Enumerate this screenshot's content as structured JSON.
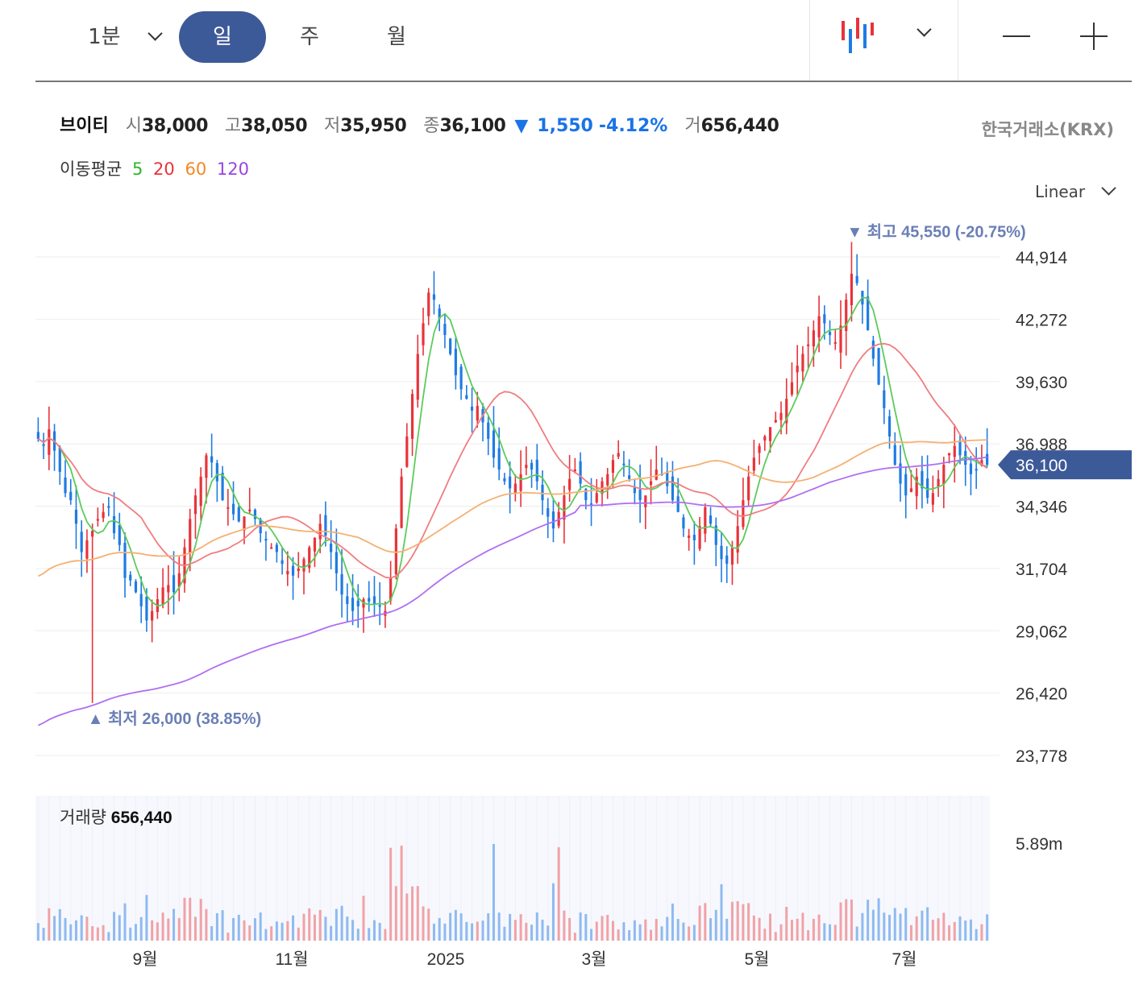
{
  "toolbar": {
    "interval": "1분",
    "periods": [
      "일",
      "주",
      "월"
    ],
    "active_period": "일"
  },
  "stock": {
    "name": "브이티",
    "open_label": "시",
    "open": "38,000",
    "high_label": "고",
    "high": "38,050",
    "low_label": "저",
    "low": "35,950",
    "close_label": "종",
    "close": "36,100",
    "change_arrow": "▼",
    "change": "1,550",
    "change_pct": "-4.12%",
    "volume_label": "거",
    "volume": "656,440",
    "exchange": "한국거래소(KRX)"
  },
  "ma_legend": {
    "title": "이동평균",
    "items": [
      {
        "period": "5",
        "color": "#2db52d"
      },
      {
        "period": "20",
        "color": "#e8333a"
      },
      {
        "period": "60",
        "color": "#f08a24"
      },
      {
        "period": "120",
        "color": "#9a45e0"
      }
    ]
  },
  "scale_mode": "Linear",
  "colors": {
    "up": "#e8333a",
    "down": "#1f7be3",
    "accent": "#3d5a98",
    "marker": "#6a7fb5"
  },
  "chart_data": {
    "type": "candlestick",
    "y_ticks": [
      "44,914",
      "42,272",
      "39,630",
      "36,988",
      "34,346",
      "31,704",
      "29,062",
      "26,420",
      "23,778"
    ],
    "y_tick_values": [
      44914,
      42272,
      39630,
      36988,
      34346,
      31704,
      29062,
      26420,
      23778
    ],
    "ylim": [
      23500,
      46300
    ],
    "x_labels": [
      "9월",
      "11월",
      "2025",
      "3월",
      "5월",
      "7월"
    ],
    "current_price": "36,100",
    "current_value": 36100,
    "high_marker": {
      "arrow": "▼",
      "label": "최고",
      "value": "45,550",
      "pct": "(-20.75%)",
      "y": 45550
    },
    "low_marker": {
      "arrow": "▲",
      "label": "최저",
      "value": "26,000",
      "pct": "(38.85%)",
      "y": 26000
    },
    "approx_closes": [
      37200,
      36900,
      37600,
      36700,
      35800,
      34900,
      34600,
      33600,
      32400,
      32900,
      33300,
      33800,
      34100,
      34300,
      33200,
      32700,
      31300,
      31200,
      30700,
      30100,
      29500,
      29900,
      30400,
      30900,
      31000,
      30700,
      31500,
      32600,
      33800,
      34800,
      35600,
      36500,
      36200,
      35400,
      34600,
      34300,
      34000,
      33700,
      33900,
      34200,
      33800,
      33200,
      32900,
      32600,
      32400,
      31900,
      31600,
      31400,
      31700,
      32100,
      32600,
      33000,
      33600,
      33100,
      32400,
      31500,
      30600,
      30200,
      29900,
      30100,
      30400,
      30300,
      30200,
      30100,
      29900,
      31300,
      33400,
      35600,
      37300,
      39100,
      40800,
      42100,
      43400,
      43100,
      42300,
      41600,
      40800,
      39900,
      39300,
      38900,
      38400,
      38600,
      37900,
      37200,
      36400,
      35900,
      35400,
      35100,
      35300,
      35700,
      36100,
      35900,
      35400,
      34600,
      33900,
      33400,
      34100,
      34800,
      35500,
      35900,
      35300,
      34600,
      34400,
      34900,
      35400,
      35700,
      36300,
      36600,
      36100,
      35500,
      34900,
      34600,
      34800,
      35400,
      35900,
      35700,
      35200,
      34600,
      34100,
      33400,
      33100,
      32900,
      33500,
      34300,
      33600,
      32700,
      32100,
      31900,
      32600,
      33500,
      34600,
      35600,
      36400,
      36900,
      37300,
      37700,
      38000,
      38300,
      38900,
      39600,
      40300,
      40800,
      41200,
      41800,
      42400,
      42100,
      41600,
      41300,
      42000,
      43100,
      44200,
      43800,
      42900,
      41800,
      40600,
      39500,
      38500,
      37300,
      36100,
      35300,
      34800,
      35100,
      35600,
      35100,
      34700,
      34900,
      35500,
      36100,
      36600,
      36900,
      36500,
      36100,
      35700,
      35900,
      36300,
      36100
    ],
    "volume_label": "거래량",
    "volume_value": "656,440",
    "volume_axis_label": "5.89m",
    "volume_max": 5890000
  }
}
